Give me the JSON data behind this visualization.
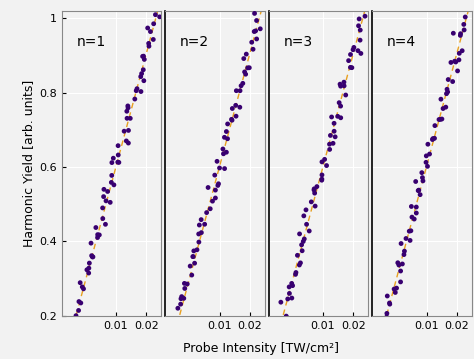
{
  "title": "",
  "xlabel": "Probe Intensity [TW/cm²]",
  "ylabel": "Harmonic Yield [arb. units]",
  "ylim": [
    0.2,
    1.0
  ],
  "n_labels": [
    "n=1",
    "n=2",
    "n=3",
    "n=4"
  ],
  "dot_color": "#380070",
  "line_color": "#e8a020",
  "background_color": "#f2f2f2",
  "grid_color": "#ffffff",
  "x_min": 0.004,
  "x_max": 0.026,
  "y_min": 0.2,
  "y_max": 1.02,
  "n_points": 65,
  "scatter_size": 12,
  "line_width": 1.0,
  "label_fontsize": 10,
  "yticks": [
    0.2,
    0.4,
    0.6,
    0.8,
    1.0
  ],
  "xticks": [
    0.01,
    0.02
  ],
  "ylabel_fontsize": 9,
  "xlabel_fontsize": 9
}
